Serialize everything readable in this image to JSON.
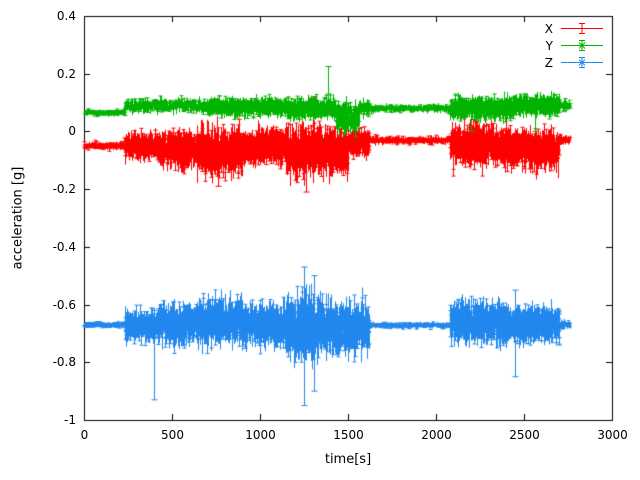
{
  "chart_data": {
    "type": "scatter",
    "style": "yerrorbars",
    "title": "",
    "xlabel": "time[s]",
    "ylabel": "acceleration [g]",
    "xlim": [
      0,
      3000
    ],
    "ylim": [
      -1,
      0.4
    ],
    "x_tick_values": [
      0,
      500,
      1000,
      1500,
      2000,
      2500,
      3000
    ],
    "x_tick_labels": [
      "0",
      "500",
      "1000",
      "1500",
      "2000",
      "2500",
      "3000"
    ],
    "y_tick_values": [
      0.4,
      0.2,
      0,
      -0.2,
      -0.4,
      -0.6,
      -0.8,
      -1
    ],
    "y_tick_labels": [
      "0.4",
      "0.2",
      "0",
      "-0.2",
      "-0.4",
      "-0.6",
      "-0.8",
      "-1"
    ],
    "grid": false,
    "legend_position": "top-right-inside",
    "background": "#ffffff",
    "axis_color": "#000000",
    "series": [
      {
        "name": "X",
        "color": "#ff0000",
        "marker": "plus",
        "baseline": -0.05,
        "segments": [
          {
            "t0": 0,
            "t1": 230,
            "mean": -0.05,
            "amp": 0.015
          },
          {
            "t0": 230,
            "t1": 420,
            "mean": -0.05,
            "amp": 0.05
          },
          {
            "t0": 420,
            "t1": 640,
            "mean": -0.06,
            "amp": 0.07
          },
          {
            "t0": 640,
            "t1": 900,
            "mean": -0.07,
            "amp": 0.09
          },
          {
            "t0": 900,
            "t1": 1150,
            "mean": -0.05,
            "amp": 0.07
          },
          {
            "t0": 1150,
            "t1": 1500,
            "mean": -0.07,
            "amp": 0.1
          },
          {
            "t0": 1500,
            "t1": 1620,
            "mean": -0.04,
            "amp": 0.05
          },
          {
            "t0": 1620,
            "t1": 2080,
            "mean": -0.03,
            "amp": 0.015
          },
          {
            "t0": 2080,
            "t1": 2380,
            "mean": -0.05,
            "amp": 0.08
          },
          {
            "t0": 2380,
            "t1": 2700,
            "mean": -0.06,
            "amp": 0.08
          },
          {
            "t0": 2700,
            "t1": 2760,
            "mean": -0.03,
            "amp": 0.02
          }
        ],
        "spikes": [
          {
            "t": 760,
            "lo": -0.19,
            "hi": -0.02
          },
          {
            "t": 1260,
            "lo": -0.21,
            "hi": -0.02
          },
          {
            "t": 1300,
            "lo": -0.06,
            "hi": 0.12
          }
        ]
      },
      {
        "name": "Y",
        "color": "#00b400",
        "marker": "cross",
        "baseline": 0.08,
        "segments": [
          {
            "t0": 0,
            "t1": 230,
            "mean": 0.065,
            "amp": 0.012
          },
          {
            "t0": 230,
            "t1": 700,
            "mean": 0.09,
            "amp": 0.03
          },
          {
            "t0": 700,
            "t1": 1150,
            "mean": 0.085,
            "amp": 0.035
          },
          {
            "t0": 1150,
            "t1": 1430,
            "mean": 0.08,
            "amp": 0.04
          },
          {
            "t0": 1430,
            "t1": 1560,
            "mean": 0.05,
            "amp": 0.055
          },
          {
            "t0": 1560,
            "t1": 1620,
            "mean": 0.08,
            "amp": 0.03
          },
          {
            "t0": 1620,
            "t1": 2080,
            "mean": 0.08,
            "amp": 0.015
          },
          {
            "t0": 2080,
            "t1": 2440,
            "mean": 0.08,
            "amp": 0.045
          },
          {
            "t0": 2440,
            "t1": 2700,
            "mean": 0.09,
            "amp": 0.04
          },
          {
            "t0": 2700,
            "t1": 2760,
            "mean": 0.09,
            "amp": 0.02
          }
        ],
        "spikes": [
          {
            "t": 1385,
            "lo": 0.13,
            "hi": 0.225
          },
          {
            "t": 2200,
            "lo": 0.0,
            "hi": 0.09
          },
          {
            "t": 2560,
            "lo": 0.0,
            "hi": 0.1
          }
        ]
      },
      {
        "name": "Z",
        "color": "#2288ee",
        "marker": "asterisk",
        "baseline": -0.67,
        "segments": [
          {
            "t0": 0,
            "t1": 230,
            "mean": -0.67,
            "amp": 0.012
          },
          {
            "t0": 230,
            "t1": 420,
            "mean": -0.67,
            "amp": 0.06
          },
          {
            "t0": 420,
            "t1": 640,
            "mean": -0.67,
            "amp": 0.08
          },
          {
            "t0": 640,
            "t1": 900,
            "mean": -0.66,
            "amp": 0.09
          },
          {
            "t0": 900,
            "t1": 1150,
            "mean": -0.67,
            "amp": 0.08
          },
          {
            "t0": 1150,
            "t1": 1350,
            "mean": -0.68,
            "amp": 0.13
          },
          {
            "t0": 1350,
            "t1": 1620,
            "mean": -0.68,
            "amp": 0.1
          },
          {
            "t0": 1620,
            "t1": 2080,
            "mean": -0.672,
            "amp": 0.012
          },
          {
            "t0": 2080,
            "t1": 2380,
            "mean": -0.66,
            "amp": 0.08
          },
          {
            "t0": 2380,
            "t1": 2700,
            "mean": -0.67,
            "amp": 0.07
          },
          {
            "t0": 2700,
            "t1": 2760,
            "mean": -0.67,
            "amp": 0.02
          }
        ],
        "spikes": [
          {
            "t": 400,
            "lo": -0.93,
            "hi": -0.62
          },
          {
            "t": 1250,
            "lo": -0.95,
            "hi": -0.47
          },
          {
            "t": 1305,
            "lo": -0.9,
            "hi": -0.5
          },
          {
            "t": 2450,
            "lo": -0.85,
            "hi": -0.55
          }
        ]
      }
    ]
  }
}
